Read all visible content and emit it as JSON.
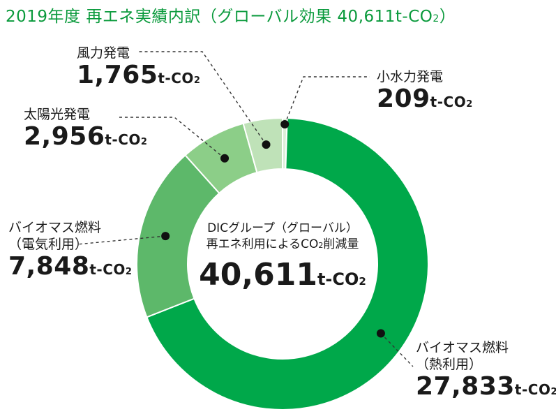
{
  "title": {
    "main": "2019年度 再エネ実績内訳（グローバル効果 40,611t-CO",
    "sub": "2",
    "close": "）"
  },
  "center": {
    "line1": "DICグループ（グローバル）",
    "line2_pre": "再エネ利用によるCO",
    "line2_sub": "2",
    "line2_post": "削減量",
    "total": "40,611",
    "unit": "t-CO",
    "unit_sub": "2"
  },
  "chart_data": {
    "type": "pie",
    "donut": true,
    "unit": "t-CO2",
    "total": 40611,
    "slices": [
      {
        "name": "小水力発電",
        "value": 209,
        "display": "209",
        "color": "#dcefd9"
      },
      {
        "name": "バイオマス燃料（熱利用）",
        "value": 27833,
        "display": "27,833",
        "color": "#00a84a"
      },
      {
        "name": "バイオマス燃料（電気利用）",
        "value": 7848,
        "display": "7,848",
        "color": "#5db86a"
      },
      {
        "name": "太陽光発電",
        "value": 2956,
        "display": "2,956",
        "color": "#8cce88"
      },
      {
        "name": "風力発電",
        "value": 1765,
        "display": "1,765",
        "color": "#bfe2b8"
      }
    ]
  },
  "labels": [
    {
      "name": "風力発電",
      "value": "1,765"
    },
    {
      "name": "小水力発電",
      "value": "209"
    },
    {
      "name": "太陽光発電",
      "value": "2,956"
    },
    {
      "name": "バイオマス燃料",
      "name2": "（電気利用）",
      "value": "7,848"
    },
    {
      "name": "バイオマス燃料",
      "name2": "（熱利用）",
      "value": "27,833"
    }
  ],
  "unit": {
    "main": "t-CO",
    "sub": "2"
  }
}
